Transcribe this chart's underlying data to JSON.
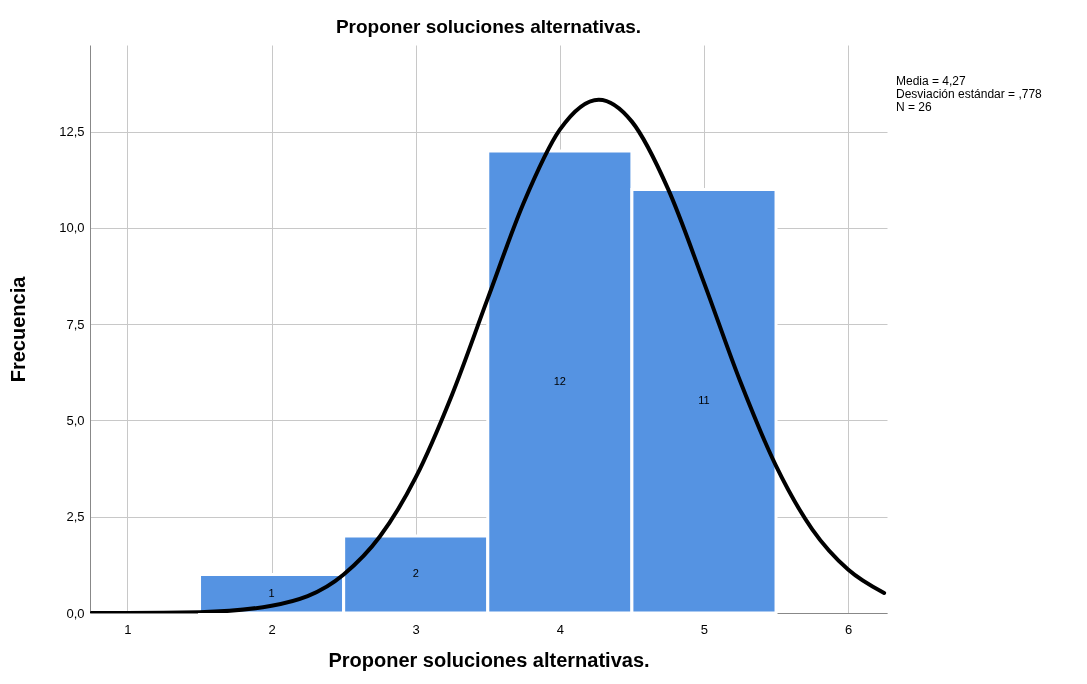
{
  "chart_data": {
    "type": "histogram",
    "title": "Proponer soluciones alternativas.",
    "xlabel": "Proponer soluciones alternativas.",
    "ylabel": "Frecuencia",
    "bins": [
      1.5,
      2.5,
      3.5,
      4.5,
      5.5
    ],
    "values": [
      1,
      2,
      12,
      11
    ],
    "color": "#5593e2",
    "value_labels": [
      "1",
      "2",
      "12",
      "11"
    ],
    "series": [
      {
        "type": "line",
        "color": "#000000",
        "x": [
          0.75,
          1,
          1.5,
          2,
          2.5,
          2.75,
          3,
          3.25,
          3.5,
          3.75,
          4,
          4.27,
          4.5,
          4.75,
          5,
          5.25,
          5.5,
          5.75,
          6,
          6.25
        ],
        "values": [
          0,
          0,
          0.02,
          0.19,
          1.0,
          1.98,
          3.52,
          5.65,
          8.17,
          10.66,
          12.55,
          13.33,
          12.76,
          11.02,
          8.58,
          6.03,
          3.82,
          2.18,
          1.13,
          0.52
        ]
      }
    ],
    "xlim": [
      0.74,
      6.27
    ],
    "xticks": [
      1,
      2,
      3,
      4,
      5,
      6
    ],
    "ylim": [
      0,
      14.75
    ],
    "yticks": [
      {
        "value": 0,
        "label": "0,0"
      },
      {
        "value": 2.5,
        "label": "2,5"
      },
      {
        "value": 5,
        "label": "5,0"
      },
      {
        "value": 7.5,
        "label": "7,5"
      },
      {
        "value": 10,
        "label": "10,0"
      },
      {
        "value": 12.5,
        "label": "12,5"
      }
    ],
    "grid": true,
    "annotations": [
      "Media = 4,27",
      "Desviación estándar = ,778",
      "N = 26"
    ]
  }
}
